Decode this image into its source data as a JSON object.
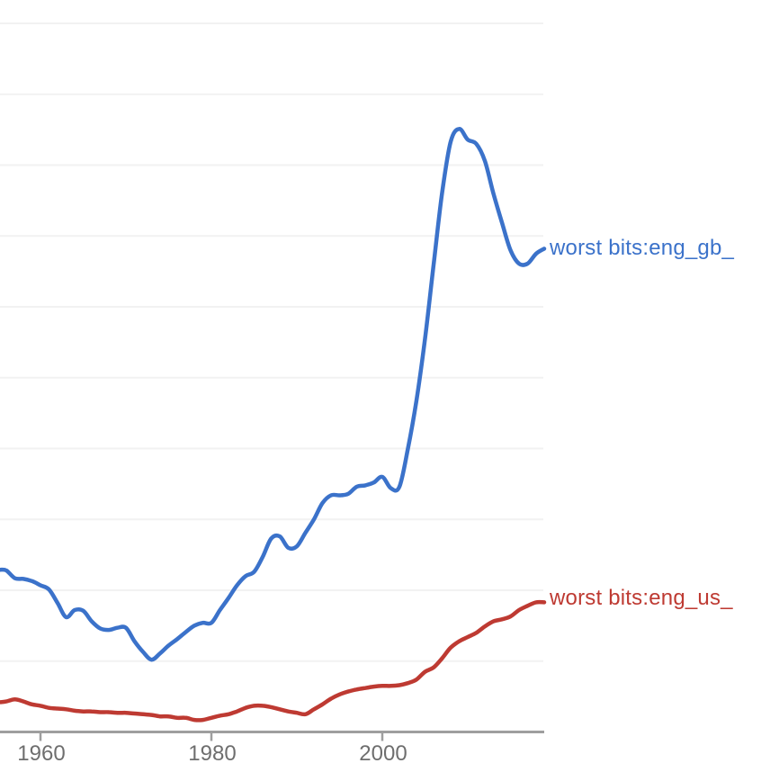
{
  "page": {
    "background": "#ffffff"
  },
  "axis_style": {
    "axis_color": "#9E9E9E",
    "tick_color": "#9E9E9E",
    "tick_label_color": "#6E6E6E",
    "gridline_color": "#F2F2F2"
  },
  "chart_data": {
    "type": "line",
    "title": "",
    "xlabel": "",
    "ylabel": "",
    "grid": true,
    "legend_position": "inline-right-of-lines",
    "x_ticks": [
      {
        "label": "1960",
        "year": 1960
      },
      {
        "label": "1980",
        "year": 1980
      },
      {
        "label": "2000",
        "year": 2000
      }
    ],
    "x_range_years": [
      1955.3,
      2019
    ],
    "y_gridline_units": [
      1,
      2,
      3,
      4,
      5,
      6,
      7,
      8,
      9,
      10
    ],
    "y_axis_note": "y tick labels are cropped out of view; values expressed in gridline divisions above baseline",
    "years": [
      1955.3,
      1956,
      1957,
      1958,
      1959,
      1960,
      1961,
      1962,
      1963,
      1964,
      1965,
      1966,
      1967,
      1968,
      1969,
      1970,
      1971,
      1972,
      1973,
      1974,
      1975,
      1976,
      1977,
      1978,
      1979,
      1980,
      1981,
      1982,
      1983,
      1984,
      1985,
      1986,
      1987,
      1988,
      1989,
      1990,
      1991,
      1992,
      1993,
      1994,
      1995,
      1996,
      1997,
      1998,
      1999,
      2000,
      2001,
      2002,
      2003,
      2004,
      2005,
      2006,
      2007,
      2008,
      2009,
      2010,
      2011,
      2012,
      2013,
      2014,
      2015,
      2016,
      2017,
      2018,
      2019
    ],
    "series": [
      {
        "label": "worst bits:eng_gb_",
        "label_truncated_at_image_edge": true,
        "color": "#3B72CA",
        "values": [
          2.29,
          2.28,
          2.17,
          2.16,
          2.13,
          2.07,
          2.01,
          1.82,
          1.62,
          1.72,
          1.71,
          1.56,
          1.46,
          1.44,
          1.47,
          1.47,
          1.28,
          1.13,
          1.02,
          1.11,
          1.22,
          1.31,
          1.41,
          1.5,
          1.54,
          1.54,
          1.72,
          1.89,
          2.07,
          2.2,
          2.26,
          2.47,
          2.73,
          2.76,
          2.6,
          2.62,
          2.81,
          3.0,
          3.23,
          3.34,
          3.34,
          3.36,
          3.46,
          3.48,
          3.52,
          3.6,
          3.44,
          3.46,
          4.0,
          4.68,
          5.55,
          6.59,
          7.61,
          8.33,
          8.51,
          8.36,
          8.3,
          8.06,
          7.6,
          7.19,
          6.8,
          6.61,
          6.61,
          6.75,
          6.82
        ]
      },
      {
        "label": "worst bits:eng_us_",
        "label_truncated_at_image_edge": true,
        "color": "#BE3A32",
        "values": [
          0.42,
          0.43,
          0.46,
          0.43,
          0.39,
          0.37,
          0.34,
          0.33,
          0.32,
          0.3,
          0.29,
          0.29,
          0.28,
          0.28,
          0.27,
          0.27,
          0.26,
          0.25,
          0.24,
          0.22,
          0.22,
          0.2,
          0.2,
          0.17,
          0.17,
          0.2,
          0.23,
          0.25,
          0.29,
          0.34,
          0.37,
          0.37,
          0.35,
          0.32,
          0.29,
          0.27,
          0.25,
          0.32,
          0.39,
          0.47,
          0.53,
          0.57,
          0.6,
          0.62,
          0.64,
          0.65,
          0.65,
          0.66,
          0.69,
          0.74,
          0.85,
          0.91,
          1.04,
          1.19,
          1.28,
          1.34,
          1.4,
          1.49,
          1.56,
          1.59,
          1.63,
          1.72,
          1.78,
          1.83,
          1.83
        ]
      }
    ]
  }
}
